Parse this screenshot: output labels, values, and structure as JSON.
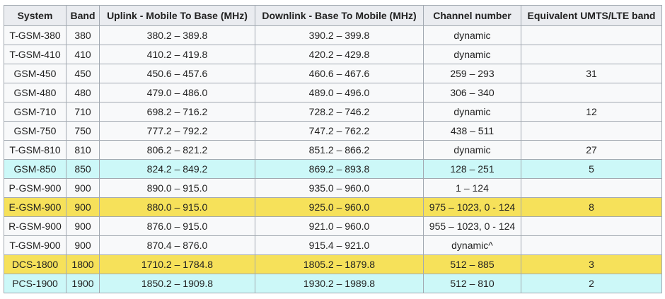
{
  "table": {
    "header": [
      "System",
      "Band",
      "Uplink - Mobile To Base (MHz)",
      "Downlink - Base To Mobile (MHz)",
      "Channel number",
      "Equivalent UMTS/LTE band"
    ],
    "rows": [
      [
        "T-GSM-380",
        "380",
        "380.2 – 389.8",
        "390.2 – 399.8",
        "dynamic",
        null
      ],
      [
        "T-GSM-410",
        "410",
        "410.2 – 419.8",
        "420.2 – 429.8",
        "dynamic",
        null
      ],
      [
        "GSM-450",
        "450",
        "450.6 – 457.6",
        "460.6 – 467.6",
        "259 – 293",
        "31"
      ],
      [
        "GSM-480",
        "480",
        "479.0 – 486.0",
        "489.0 – 496.0",
        "306 – 340",
        null
      ],
      [
        "GSM-710",
        "710",
        "698.2 – 716.2",
        "728.2 – 746.2",
        "dynamic",
        "12"
      ],
      [
        "GSM-750",
        "750",
        "777.2 – 792.2",
        "747.2 – 762.2",
        "438 – 511",
        null
      ],
      [
        "T-GSM-810",
        "810",
        "806.2 – 821.2",
        "851.2 – 866.2",
        "dynamic",
        "27"
      ],
      [
        "GSM-850",
        "850",
        "824.2 – 849.2",
        "869.2 – 893.8",
        "128 – 251",
        "5"
      ],
      [
        "P-GSM-900",
        "900",
        "890.0 – 915.0",
        "935.0 – 960.0",
        "1 – 124",
        null
      ],
      [
        "E-GSM-900",
        "900",
        "880.0 – 915.0",
        "925.0 – 960.0",
        "975 – 1023, 0 - 124",
        "8"
      ],
      [
        "R-GSM-900",
        "900",
        "876.0 – 915.0",
        "921.0 – 960.0",
        "955 – 1023, 0 - 124",
        null
      ],
      [
        "T-GSM-900",
        "900",
        "870.4 – 876.0",
        "915.4 – 921.0",
        "dynamic^",
        null
      ],
      [
        "DCS-1800",
        "1800",
        "1710.2 – 1784.8",
        "1805.2 – 1879.8",
        "512 – 885",
        "3"
      ],
      [
        "PCS-1900",
        "1900",
        "1850.2 – 1909.8",
        "1930.2 – 1989.8",
        "512 – 810",
        "2"
      ]
    ]
  }
}
